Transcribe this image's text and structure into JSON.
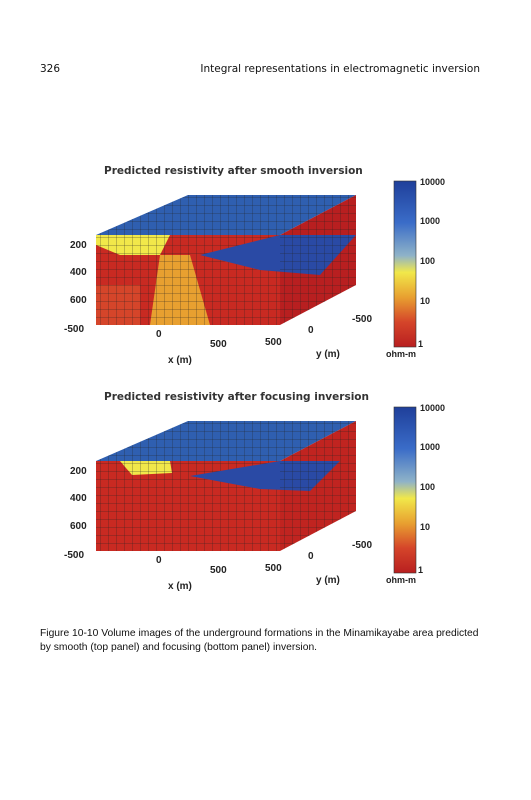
{
  "page": {
    "number": "326",
    "running_head": "Integral representations in electromagnetic inversion"
  },
  "figure": {
    "panels": [
      {
        "title": "Predicted resistivity after smooth inversion",
        "depth_ticks": [
          "200",
          "400",
          "600"
        ],
        "x_ticks": [
          "-500",
          "0",
          "500"
        ],
        "y_ticks": [
          "500",
          "0",
          "-500"
        ],
        "x_label": "x (m)",
        "y_label": "y (m)",
        "colorbar_ticks": [
          "10000",
          "1000",
          "100",
          "10",
          "1"
        ],
        "colorbar_unit": "ohm-m"
      },
      {
        "title": "Predicted resistivity after focusing inversion",
        "depth_ticks": [
          "200",
          "400",
          "600"
        ],
        "x_ticks": [
          "-500",
          "0",
          "500"
        ],
        "y_ticks": [
          "500",
          "0",
          "-500"
        ],
        "x_label": "x (m)",
        "y_label": "y (m)",
        "colorbar_ticks": [
          "10000",
          "1000",
          "100",
          "10",
          "1"
        ],
        "colorbar_unit": "ohm-m"
      }
    ],
    "colormap": [
      "#1f3f9a",
      "#3a6cc8",
      "#8fb3c8",
      "#f1e84a",
      "#e8a030",
      "#d5452a",
      "#b81f20"
    ],
    "caption": "Figure 10-10   Volume images of the underground formations in the Minamikayabe area predicted by smooth (top panel) and focusing (bottom panel) inversion."
  }
}
